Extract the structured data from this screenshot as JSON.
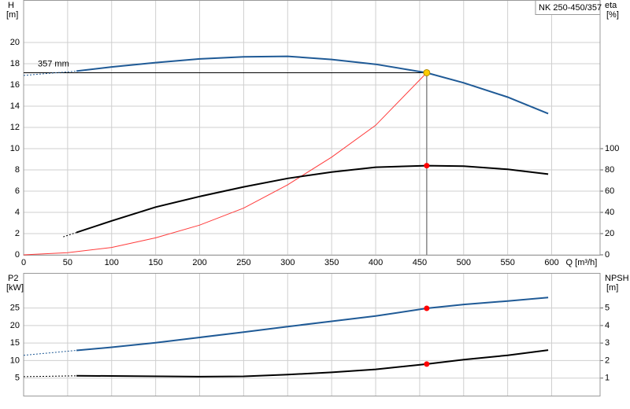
{
  "chart_data": [
    {
      "type": "line",
      "title": "NK 250-450/357",
      "xlabel": "Q [m³/h]",
      "ylabel": "H",
      "ylabel_unit": "[m]",
      "y2label": "eta",
      "y2label_unit": "[%]",
      "annotation": "357 mm",
      "xlim": [
        0,
        655
      ],
      "xticks": [
        0,
        50,
        100,
        150,
        200,
        250,
        300,
        350,
        400,
        450,
        500,
        550,
        600
      ],
      "ylim": [
        0,
        24
      ],
      "yticks": [
        0,
        2,
        4,
        6,
        8,
        10,
        12,
        14,
        16,
        18,
        20
      ],
      "y2lim": [
        0,
        240
      ],
      "y2ticks": [
        0,
        20,
        40,
        60,
        80,
        100
      ],
      "grid": true,
      "series": [
        {
          "color": "#1f5a96",
          "x": [
            60,
            100,
            150,
            200,
            250,
            300,
            350,
            400,
            458,
            500,
            550,
            596
          ],
          "values": [
            17.3,
            17.7,
            18.1,
            18.45,
            18.65,
            18.7,
            18.4,
            17.95,
            17.15,
            16.2,
            14.85,
            13.3
          ]
        },
        {
          "color": "#1f5a96",
          "dashed": true,
          "x": [
            0,
            60
          ],
          "values": [
            16.9,
            17.3
          ]
        },
        {
          "color": "#ff3b3b",
          "style": "thin",
          "x": [
            0,
            50,
            100,
            150,
            200,
            250,
            300,
            350,
            400,
            458
          ],
          "values": [
            0,
            0.2,
            0.7,
            1.6,
            2.8,
            4.4,
            6.6,
            9.2,
            12.2,
            17.15
          ]
        },
        {
          "color": "#000000",
          "axis": "y2",
          "x": [
            60,
            100,
            150,
            200,
            250,
            300,
            350,
            400,
            458,
            500,
            550,
            596
          ],
          "values": [
            21,
            32,
            45,
            55,
            64,
            72,
            78,
            82.5,
            84,
            83.5,
            80.5,
            76
          ]
        },
        {
          "color": "#000000",
          "axis": "y2",
          "dashed": true,
          "x": [
            45,
            60
          ],
          "values": [
            17,
            21
          ]
        }
      ],
      "operating_point": {
        "x": 458,
        "y": 17.15,
        "color": "#ffcc00"
      },
      "points": [
        {
          "x": 458,
          "y": 84,
          "axis": "y2",
          "color": "#ff0000"
        }
      ]
    },
    {
      "type": "line",
      "ylabel": "P2",
      "ylabel_unit": "[kW]",
      "y2label": "NPSH",
      "y2label_unit": "[m]",
      "xlim": [
        0,
        655
      ],
      "ylim": [
        0,
        35
      ],
      "yticks": [
        5,
        10,
        15,
        20,
        25
      ],
      "y2lim": [
        0,
        7
      ],
      "y2ticks": [
        1,
        2,
        3,
        4,
        5
      ],
      "grid": true,
      "series": [
        {
          "color": "#1f5a96",
          "x": [
            60,
            100,
            150,
            200,
            250,
            300,
            350,
            400,
            458,
            500,
            550,
            596
          ],
          "values": [
            12.9,
            13.8,
            15.1,
            16.6,
            18.1,
            19.7,
            21.2,
            22.7,
            24.9,
            26,
            27,
            28
          ]
        },
        {
          "color": "#1f5a96",
          "dashed": true,
          "x": [
            0,
            60
          ],
          "values": [
            11.5,
            12.9
          ]
        },
        {
          "color": "#000000",
          "axis": "y2",
          "x": [
            60,
            100,
            200,
            250,
            300,
            350,
            400,
            458,
            500,
            550,
            596
          ],
          "values": [
            1.13,
            1.12,
            1.08,
            1.1,
            1.2,
            1.33,
            1.5,
            1.8,
            2.05,
            2.3,
            2.6
          ]
        },
        {
          "color": "#000000",
          "axis": "y2",
          "dashed": true,
          "x": [
            0,
            60
          ],
          "values": [
            1.08,
            1.13
          ]
        }
      ],
      "points": [
        {
          "x": 458,
          "y": 24.9,
          "color": "#ff0000"
        },
        {
          "x": 458,
          "y": 1.8,
          "axis": "y2",
          "color": "#ff0000"
        }
      ]
    }
  ]
}
